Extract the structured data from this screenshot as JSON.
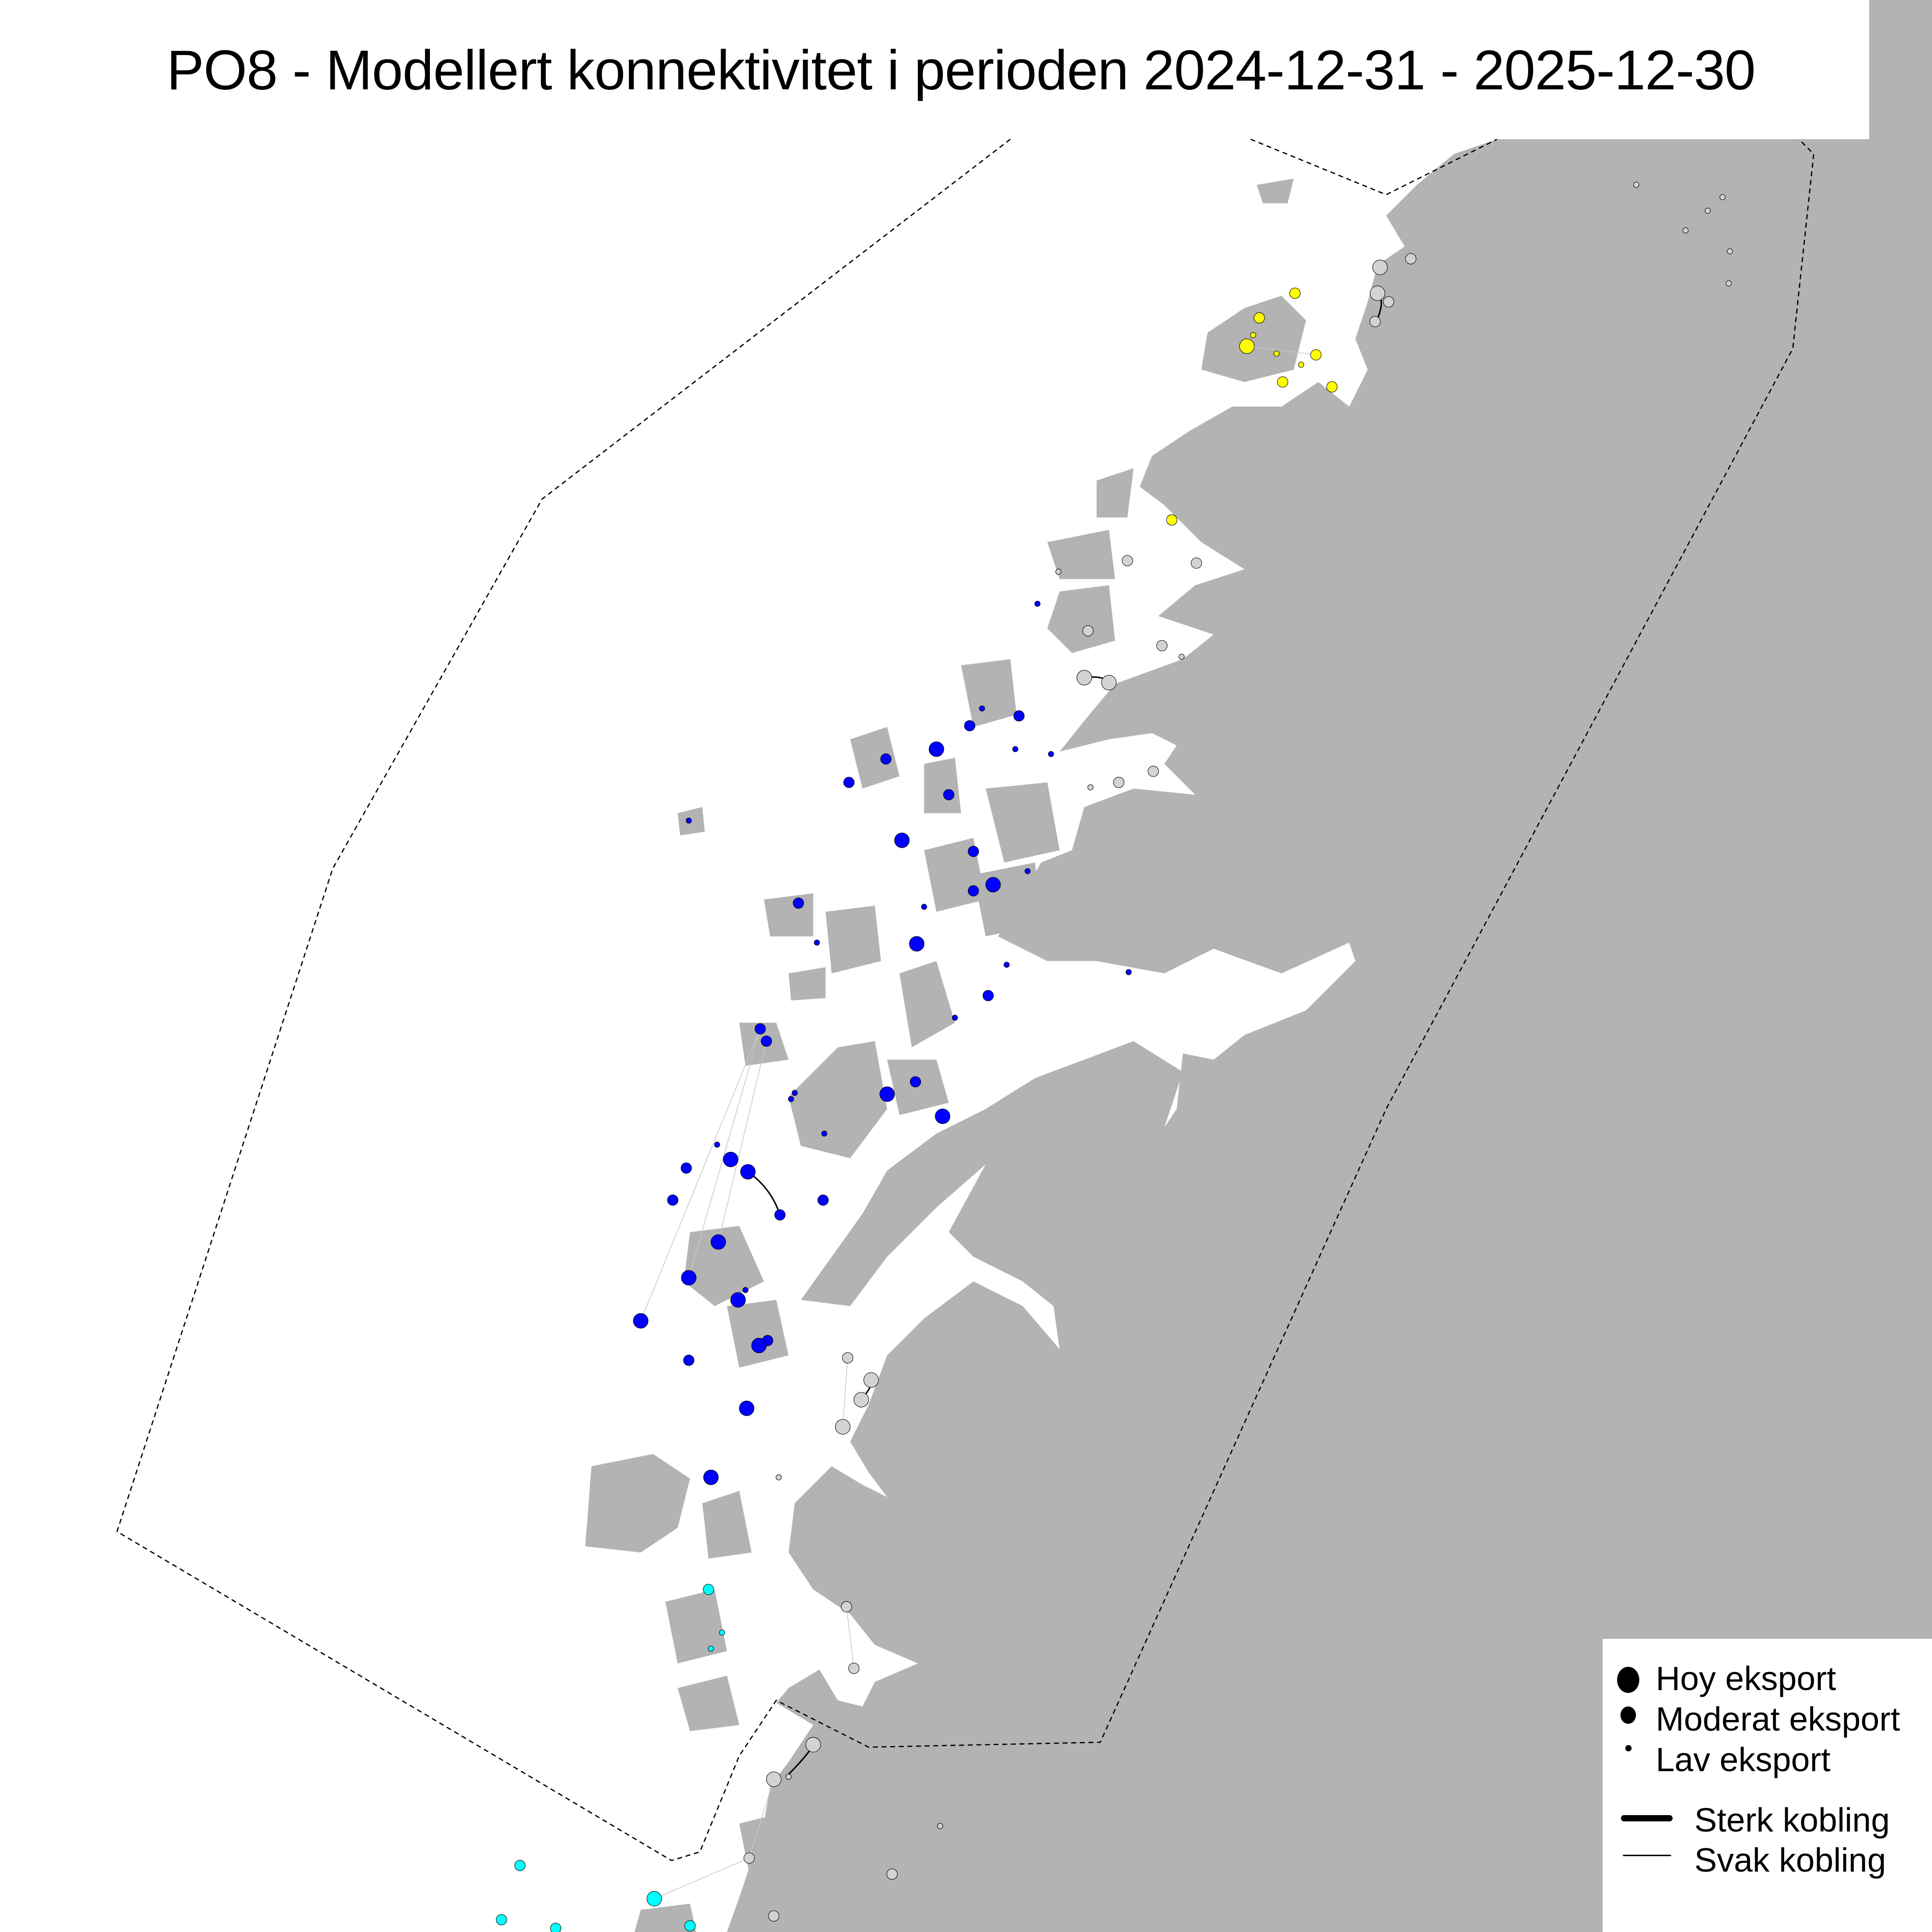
{
  "title": "PO8 - Modellert konnektivitet i perioden 2024-12-31 - 2025-12-30",
  "colors": {
    "land": "#b3b3b3",
    "sea": "#ffffff",
    "boundary": "#000000",
    "cluster_north": "#ffff00",
    "cluster_middle": "#0000ff",
    "cluster_south": "#00ffff",
    "other_sites": "#d3d3d3",
    "weak_link": "#c8c8c8",
    "strong_link": "#000000"
  },
  "legend": {
    "sizes": [
      {
        "label": "Hoy eksport",
        "icon": "large-circle"
      },
      {
        "label": "Moderat eksport",
        "icon": "medium-circle"
      },
      {
        "label": "Lav eksport",
        "icon": "small-circle"
      }
    ],
    "links": [
      {
        "label": "Sterk kobling",
        "icon": "thick-line"
      },
      {
        "label": "Svak kobling",
        "icon": "thin-line"
      }
    ]
  }
}
